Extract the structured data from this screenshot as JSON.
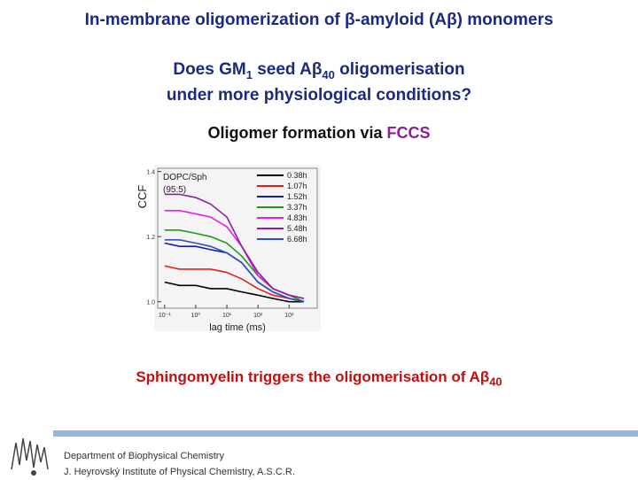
{
  "header": {
    "title": "In-membrane oligomerization of β-amyloid (Aβ) monomers"
  },
  "question": {
    "line1": [
      "Does GM",
      "1",
      " seed Aβ",
      "40",
      " oligomerisation"
    ],
    "line2": "under more physiological conditions?"
  },
  "method": {
    "text": "Oligomer formation via ",
    "highlight": "FCCS"
  },
  "chart_data": {
    "type": "line",
    "x_label": "lag time (ms)",
    "y_label": "CCF",
    "annotation": [
      "DOPC/Sph",
      "(95:5)"
    ],
    "x": [
      0.1,
      0.3,
      1,
      3,
      10,
      30,
      100,
      300,
      1000,
      3000
    ],
    "xlim": [
      0.06,
      8000
    ],
    "xticks": [
      {
        "value": 0.1,
        "label": "10⁻¹"
      },
      {
        "value": 1,
        "label": "10⁰"
      },
      {
        "value": 10,
        "label": "10¹"
      },
      {
        "value": 100,
        "label": "10²"
      },
      {
        "value": 1000,
        "label": "10³"
      }
    ],
    "ylim": [
      0.98,
      1.41
    ],
    "yticks": [
      {
        "value": 1.0,
        "label": "1.0"
      },
      {
        "value": 1.2,
        "label": "1.2"
      },
      {
        "value": 1.4,
        "label": "1.4"
      }
    ],
    "log_x": true,
    "series": [
      {
        "name": "0.38h",
        "color": "#000000",
        "values": [
          1.06,
          1.05,
          1.05,
          1.04,
          1.04,
          1.03,
          1.02,
          1.01,
          1.0,
          1.0
        ]
      },
      {
        "name": "1.07h",
        "color": "#e02020",
        "values": [
          1.11,
          1.1,
          1.1,
          1.1,
          1.09,
          1.07,
          1.04,
          1.02,
          1.01,
          1.0
        ]
      },
      {
        "name": "1.52h",
        "color": "#1a1aa0",
        "values": [
          1.18,
          1.17,
          1.17,
          1.16,
          1.15,
          1.12,
          1.06,
          1.03,
          1.01,
          1.0
        ]
      },
      {
        "name": "3.37h",
        "color": "#1e9a1e",
        "values": [
          1.22,
          1.22,
          1.21,
          1.2,
          1.18,
          1.14,
          1.08,
          1.04,
          1.02,
          1.0
        ]
      },
      {
        "name": "4.83h",
        "color": "#e020e0",
        "values": [
          1.28,
          1.28,
          1.27,
          1.26,
          1.23,
          1.17,
          1.08,
          1.04,
          1.02,
          1.01
        ]
      },
      {
        "name": "5.48h",
        "color": "#8a20a0",
        "values": [
          1.33,
          1.33,
          1.32,
          1.3,
          1.26,
          1.17,
          1.09,
          1.04,
          1.02,
          1.01
        ]
      },
      {
        "name": "6.68h",
        "color": "#3050c0",
        "values": [
          1.19,
          1.19,
          1.18,
          1.17,
          1.15,
          1.12,
          1.06,
          1.03,
          1.01,
          1.0
        ]
      }
    ]
  },
  "conclusion": {
    "text": "Sphingomyelin triggers the oligomerisation of Aβ",
    "sub": "40"
  },
  "footer": {
    "line1": "Department of Biophysical Chemistry",
    "line2": "J. Heyrovský Institute of Physical Chemistry, A.S.C.R."
  }
}
